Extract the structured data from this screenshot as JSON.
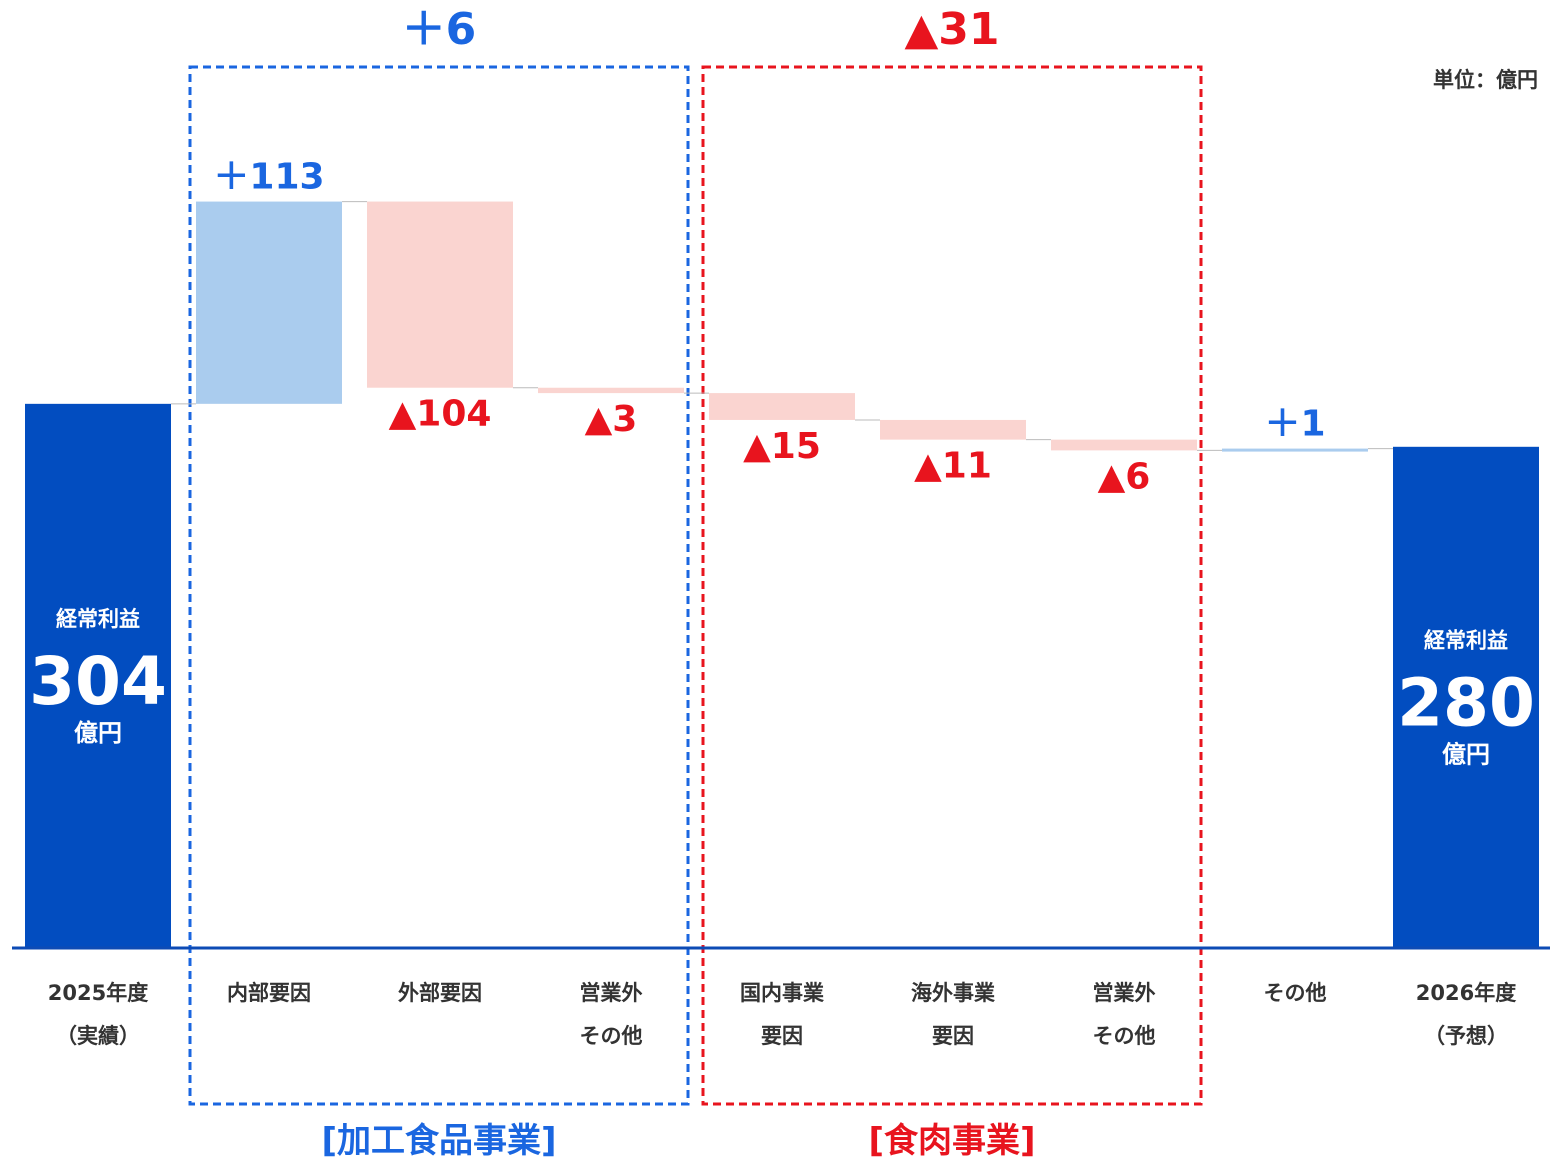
{
  "unit_label": "単位：億円",
  "colors": {
    "total": "#024DC0",
    "increase": "#AACCEE",
    "decrease": "#FAD4D0",
    "positive_text": "#1A66E0",
    "negative_text": "#E8141E",
    "axis": "#0D4BB5",
    "category_text": "#333333",
    "connector": "#BBBBBB"
  },
  "chart_data": {
    "type": "waterfall",
    "categories": [
      [
        "2025年度",
        "（実績）"
      ],
      [
        "内部要因"
      ],
      [
        "外部要因"
      ],
      [
        "営業外",
        "その他"
      ],
      [
        "国内事業",
        "要因"
      ],
      [
        "海外事業",
        "要因"
      ],
      [
        "営業外",
        "その他"
      ],
      [
        "その他"
      ],
      [
        "2026年度",
        "（予想）"
      ]
    ],
    "steps": [
      {
        "kind": "total",
        "value": 304,
        "title": "経常利益",
        "value_label": "304",
        "unit": "億円"
      },
      {
        "kind": "delta",
        "value": 113,
        "label": "＋113"
      },
      {
        "kind": "delta",
        "value": -104,
        "label": "▲104"
      },
      {
        "kind": "delta",
        "value": -3,
        "label": "▲3"
      },
      {
        "kind": "delta",
        "value": -15,
        "label": "▲15"
      },
      {
        "kind": "delta",
        "value": -11,
        "label": "▲11"
      },
      {
        "kind": "delta",
        "value": -6,
        "label": "▲6"
      },
      {
        "kind": "delta",
        "value": 1,
        "label": "＋1"
      },
      {
        "kind": "total",
        "value": 280,
        "title": "経常利益",
        "value_label": "280",
        "unit": "億円"
      }
    ],
    "groups": [
      {
        "name": "[加工食品事業]",
        "total_label": "＋6",
        "total": 6,
        "first_step": 1,
        "last_step": 3,
        "tone": "positive"
      },
      {
        "name": "[食肉事業]",
        "total_label": "▲31",
        "total": -31,
        "first_step": 4,
        "last_step": 6,
        "tone": "negative"
      }
    ],
    "ylim": [
      0,
      420
    ],
    "unit": "億円"
  }
}
